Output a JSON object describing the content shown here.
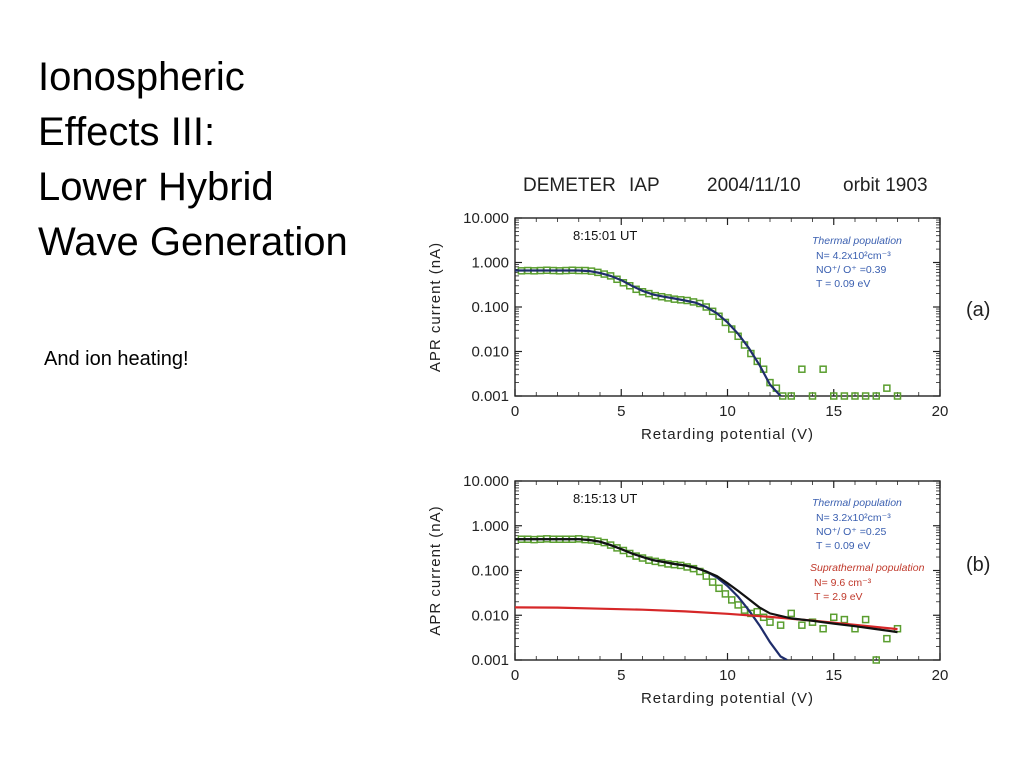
{
  "slide": {
    "title_lines": [
      "Ionospheric",
      "Effects III:",
      "Lower Hybrid",
      "Wave Generation"
    ],
    "note": "And ion heating!"
  },
  "figure_header": {
    "satellite": "DEMETER",
    "instrument": "IAP",
    "date": "2004/11/10",
    "orbit": "orbit 1903"
  },
  "chart_data": [
    {
      "type": "scatter",
      "panel_label": "(a)",
      "time_label": "8:15:01 UT",
      "xlabel": "Retarding potential (V)",
      "ylabel": "APR current (nA)",
      "xlim": [
        0,
        20
      ],
      "ylim": [
        0.001,
        10
      ],
      "yscale": "log",
      "x_ticks": [
        "0",
        "5",
        "10",
        "15",
        "20"
      ],
      "y_ticks": [
        "10.000",
        "1.000",
        "0.100",
        "0.010",
        "0.001"
      ],
      "legend": {
        "title": "Thermal population",
        "lines": [
          "N= 4.2x10²cm⁻³",
          "NO⁺/ O⁺ =0.39",
          "T = 0.09 eV"
        ]
      },
      "series": [
        {
          "kind": "markers",
          "color": "#5a9e2f",
          "x": [
            0.3,
            0.6,
            0.9,
            1.2,
            1.5,
            1.8,
            2.1,
            2.4,
            2.7,
            3.0,
            3.3,
            3.6,
            3.9,
            4.2,
            4.5,
            4.8,
            5.1,
            5.4,
            5.7,
            6.0,
            6.3,
            6.6,
            6.9,
            7.2,
            7.5,
            7.8,
            8.1,
            8.4,
            8.7,
            9.0,
            9.3,
            9.6,
            9.9,
            10.2,
            10.5,
            10.8,
            11.1,
            11.4,
            11.7,
            12.0,
            12.3,
            12.6,
            13.0,
            13.5,
            14.0,
            14.5,
            15.0,
            15.5,
            16.0,
            16.5,
            17.0,
            17.5,
            18.0
          ],
          "y": [
            0.65,
            0.66,
            0.65,
            0.66,
            0.67,
            0.66,
            0.65,
            0.66,
            0.67,
            0.66,
            0.66,
            0.64,
            0.6,
            0.55,
            0.5,
            0.42,
            0.35,
            0.3,
            0.25,
            0.22,
            0.2,
            0.18,
            0.17,
            0.16,
            0.15,
            0.145,
            0.14,
            0.13,
            0.12,
            0.1,
            0.08,
            0.062,
            0.045,
            0.032,
            0.022,
            0.014,
            0.009,
            0.006,
            0.004,
            0.002,
            0.0015,
            0.001,
            0.001,
            0.004,
            0.001,
            0.004,
            0.001,
            0.001,
            0.001,
            0.001,
            0.001,
            0.0015,
            0.001
          ]
        },
        {
          "kind": "line",
          "color": "#1f2d6b",
          "x": [
            0,
            1,
            2,
            3,
            3.5,
            4,
            4.5,
            5,
            5.5,
            6,
            6.5,
            7,
            7.5,
            8,
            8.5,
            9,
            9.5,
            10,
            10.5,
            11,
            11.5,
            12,
            12.5
          ],
          "y": [
            0.66,
            0.66,
            0.66,
            0.66,
            0.64,
            0.58,
            0.5,
            0.4,
            0.3,
            0.23,
            0.19,
            0.17,
            0.155,
            0.14,
            0.125,
            0.1,
            0.072,
            0.045,
            0.025,
            0.012,
            0.005,
            0.0018,
            0.0008
          ]
        }
      ]
    },
    {
      "type": "scatter",
      "panel_label": "(b)",
      "time_label": "8:15:13 UT",
      "xlabel": "Retarding potential (V)",
      "ylabel": "APR current (nA)",
      "xlim": [
        0,
        20
      ],
      "ylim": [
        0.001,
        10
      ],
      "yscale": "log",
      "x_ticks": [
        "0",
        "5",
        "10",
        "15",
        "20"
      ],
      "y_ticks": [
        "10.000",
        "1.000",
        "0.100",
        "0.010",
        "0.001"
      ],
      "legend": {
        "title": "Thermal population",
        "lines": [
          "N= 3.2x10²cm⁻³",
          "NO⁺/ O⁺ =0.25",
          "T = 0.09 eV"
        ],
        "title2": "Suprathermal population",
        "lines2": [
          "N= 9.6 cm⁻³",
          "T = 2.9 eV"
        ]
      },
      "series": [
        {
          "kind": "markers",
          "color": "#5a9e2f",
          "x": [
            0.3,
            0.6,
            0.9,
            1.2,
            1.5,
            1.8,
            2.1,
            2.4,
            2.7,
            3.0,
            3.3,
            3.6,
            3.9,
            4.2,
            4.5,
            4.8,
            5.1,
            5.4,
            5.7,
            6.0,
            6.3,
            6.6,
            6.9,
            7.2,
            7.5,
            7.8,
            8.1,
            8.4,
            8.7,
            9.0,
            9.3,
            9.6,
            9.9,
            10.2,
            10.5,
            10.8,
            11.1,
            11.4,
            11.7,
            12.0,
            12.5,
            13.0,
            13.5,
            14.0,
            14.5,
            15.0,
            15.5,
            16.0,
            16.5,
            17.0,
            17.5,
            18.0
          ],
          "y": [
            0.5,
            0.5,
            0.49,
            0.5,
            0.51,
            0.5,
            0.5,
            0.5,
            0.5,
            0.51,
            0.49,
            0.48,
            0.45,
            0.42,
            0.37,
            0.32,
            0.28,
            0.24,
            0.21,
            0.19,
            0.17,
            0.16,
            0.15,
            0.14,
            0.135,
            0.13,
            0.12,
            0.11,
            0.095,
            0.075,
            0.055,
            0.04,
            0.03,
            0.022,
            0.017,
            0.013,
            0.011,
            0.012,
            0.009,
            0.007,
            0.006,
            0.011,
            0.006,
            0.007,
            0.005,
            0.009,
            0.008,
            0.005,
            0.008,
            0.001,
            0.003,
            0.005
          ]
        },
        {
          "kind": "line",
          "color": "#1f2d6b",
          "x": [
            0,
            1,
            2,
            3,
            3.5,
            4,
            4.5,
            5,
            5.5,
            6,
            6.5,
            7,
            7.5,
            8,
            8.5,
            9,
            9.5,
            10,
            10.5,
            11,
            11.5,
            12,
            12.5,
            12.8
          ],
          "y": [
            0.5,
            0.5,
            0.5,
            0.5,
            0.48,
            0.44,
            0.37,
            0.3,
            0.24,
            0.2,
            0.17,
            0.155,
            0.14,
            0.13,
            0.115,
            0.095,
            0.07,
            0.045,
            0.026,
            0.013,
            0.006,
            0.0025,
            0.0012,
            0.0008
          ]
        },
        {
          "kind": "line",
          "color": "#d62728",
          "x": [
            0,
            2,
            4,
            6,
            8,
            10,
            12,
            14,
            16,
            18
          ],
          "y": [
            0.015,
            0.0148,
            0.014,
            0.0133,
            0.0122,
            0.0108,
            0.0092,
            0.0076,
            0.0061,
            0.0049
          ]
        },
        {
          "kind": "line",
          "color": "#111111",
          "x": [
            0,
            1,
            2,
            3,
            3.5,
            4,
            4.5,
            5,
            5.5,
            6,
            6.5,
            7,
            7.5,
            8,
            8.5,
            9,
            9.5,
            10,
            10.5,
            11,
            11.5,
            12,
            13,
            14,
            15,
            16,
            17,
            18
          ],
          "y": [
            0.5,
            0.5,
            0.5,
            0.5,
            0.48,
            0.44,
            0.37,
            0.3,
            0.24,
            0.2,
            0.17,
            0.155,
            0.14,
            0.13,
            0.115,
            0.095,
            0.075,
            0.052,
            0.035,
            0.023,
            0.015,
            0.011,
            0.0085,
            0.0075,
            0.0065,
            0.0057,
            0.0049,
            0.0042
          ]
        }
      ]
    }
  ]
}
